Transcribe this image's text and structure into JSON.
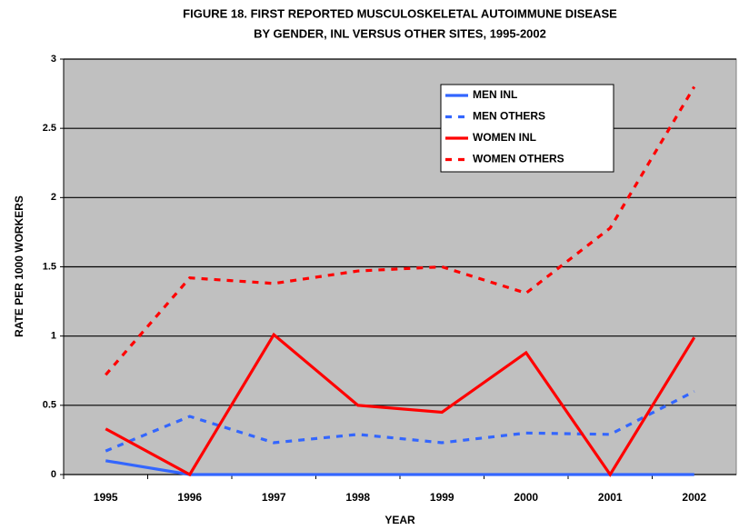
{
  "chart_data": {
    "type": "line",
    "title": [
      "FIGURE 18.  FIRST REPORTED MUSCULOSKELETAL AUTOIMMUNE DISEASE",
      "BY GENDER, INL VERSUS OTHER SITES, 1995-2002"
    ],
    "x_label": "YEAR",
    "y_label": "RATE PER 1000 WORKERS",
    "categories": [
      "1995",
      "1996",
      "1997",
      "1998",
      "1999",
      "2000",
      "2001",
      "2002"
    ],
    "series": [
      {
        "name": "MEN INL",
        "color": "#3366ff",
        "style": "solid",
        "values": [
          0.1,
          0,
          0,
          0,
          0,
          0,
          0,
          0
        ]
      },
      {
        "name": "MEN OTHERS",
        "color": "#3366ff",
        "style": "dashed",
        "values": [
          0.17,
          0.42,
          0.23,
          0.29,
          0.23,
          0.3,
          0.29,
          0.6
        ]
      },
      {
        "name": "WOMEN INL",
        "color": "#ff0000",
        "style": "solid",
        "values": [
          0.33,
          0,
          1.01,
          0.5,
          0.45,
          0.88,
          0,
          0.99
        ]
      },
      {
        "name": "WOMEN OTHERS",
        "color": "#ff0000",
        "style": "dashed",
        "values": [
          0.72,
          1.42,
          1.38,
          1.47,
          1.5,
          1.31,
          1.78,
          2.8
        ]
      }
    ],
    "ylim": [
      0,
      3
    ],
    "yticks": [
      0,
      0.5,
      1,
      1.5,
      2,
      2.5,
      3
    ],
    "grid": true,
    "plot_background": "#c0c0c0",
    "legend": "top-right"
  }
}
